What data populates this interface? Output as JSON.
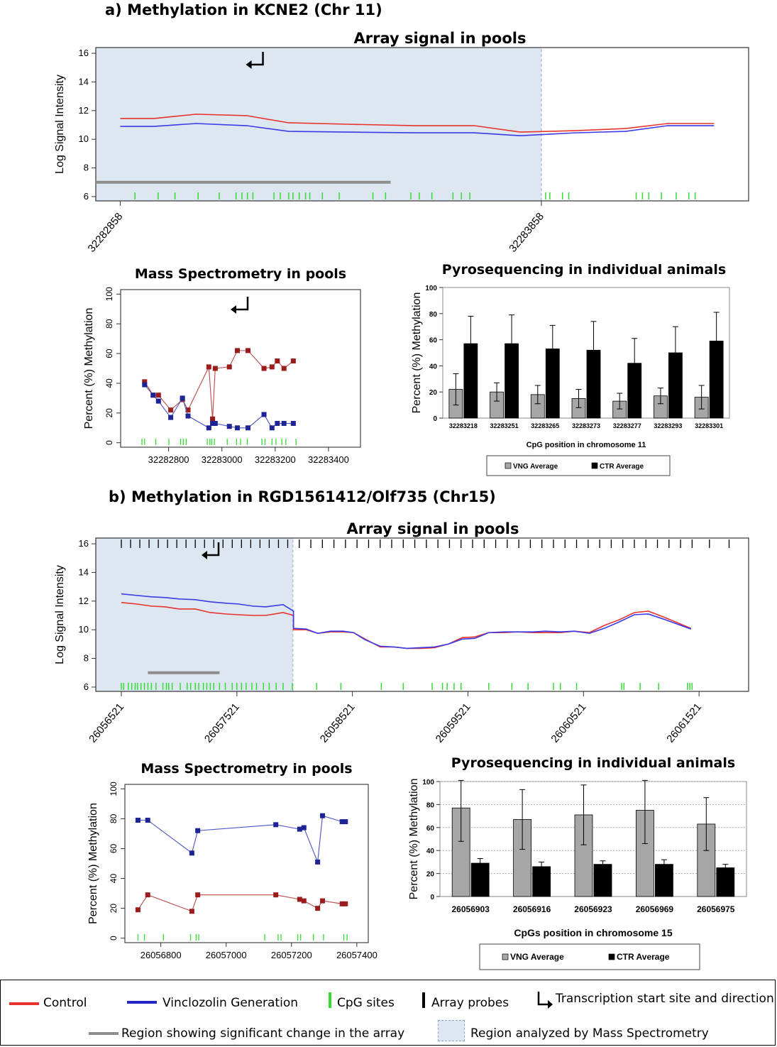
{
  "headings": {
    "part_a": "a) Methylation in KCNE2 (Chr 11)",
    "part_b": "b) Methylation in RGD1561412/Olf735 (Chr15)"
  },
  "colors": {
    "control": "#e8322b",
    "vinclozolin": "#3a3ae8",
    "cpg": "#33dd33",
    "shade": "#dde7f2",
    "sig_region": "#8c8c8c",
    "ms_control": "#9a1c1c",
    "ms_vinclozolin": "#1c2496",
    "pyro_vng": "#a6a6a6",
    "pyro_ctr": "#000000"
  },
  "legend": {
    "control": "Control",
    "vinclozolin": "Vinclozolin Generation",
    "cpg": "CpG sites",
    "probes": "Array probes",
    "tss": "Transcription start site and direction",
    "sig_region": "Region showing significant change in the array",
    "ms_region": "Region analyzed by Mass Spectrometry"
  },
  "chart_data": [
    {
      "id": "a_array",
      "type": "line",
      "title": "Array signal in pools",
      "ylabel": "Log Signal Intensity",
      "xlim": [
        32282800,
        32284350
      ],
      "ylim": [
        5.7,
        16.4
      ],
      "yticks": [
        6,
        8,
        10,
        12,
        14,
        16
      ],
      "xtick_labels": [
        "32282858",
        "32283858"
      ],
      "xticks": [
        32282858,
        32283858
      ],
      "ms_region": [
        32282800,
        32283858
      ],
      "significant_region": [
        32282800,
        32283500
      ],
      "tss": 32283180,
      "x": [
        32282858,
        32282938,
        32283038,
        32283158,
        32283258,
        32283398,
        32283558,
        32283698,
        32283808,
        32283938,
        32284058,
        32284158,
        32284268
      ],
      "series": [
        {
          "name": "Control",
          "values": [
            11.45,
            11.45,
            11.75,
            11.65,
            11.15,
            11.05,
            10.95,
            10.95,
            10.5,
            10.6,
            10.75,
            11.1,
            11.1
          ]
        },
        {
          "name": "Vinclozolin Generation",
          "values": [
            10.9,
            10.9,
            11.1,
            10.95,
            10.55,
            10.5,
            10.45,
            10.45,
            10.25,
            10.45,
            10.55,
            10.95,
            10.95
          ]
        }
      ],
      "cpg_sites": [
        32282893,
        32282948,
        32282988,
        32283043,
        32283093,
        32283133,
        32283147,
        32283160,
        32283173,
        32283223,
        32283238,
        32283258,
        32283268,
        32283283,
        32283298,
        32283308,
        32283338,
        32283378,
        32283458,
        32283488,
        32283548,
        32283568,
        32283598,
        32283648,
        32283668,
        32283688,
        32283868,
        32283878,
        32283908,
        32283923,
        32284083,
        32284098,
        32284113,
        32284143,
        32284178,
        32284208,
        32284223
      ]
    },
    {
      "id": "a_ms",
      "type": "line",
      "title": "Mass Spectrometry in pools",
      "ylabel": "Percent (%) Methylation",
      "xlim": [
        32282620,
        32283520
      ],
      "ylim": [
        -3,
        103
      ],
      "yticks": [
        0,
        20,
        40,
        60,
        80,
        100
      ],
      "xticks": [
        32282800,
        32283000,
        32283200,
        32283400
      ],
      "tss": 32283070,
      "series": [
        {
          "name": "Control",
          "points": [
            [
              32282710,
              41
            ],
            [
              32282742,
              32
            ],
            [
              32282762,
              32
            ],
            [
              32282808,
              22
            ],
            [
              32282852,
              29
            ],
            [
              32282873,
              22
            ],
            [
              32282951,
              51
            ],
            [
              32282965,
              16
            ],
            [
              32282975,
              50
            ],
            [
              32283028,
              51
            ],
            [
              32283058,
              62
            ],
            [
              32283098,
              62
            ],
            [
              32283158,
              50
            ],
            [
              32283188,
              51
            ],
            [
              32283208,
              55
            ],
            [
              32283233,
              50
            ],
            [
              32283268,
              55
            ]
          ]
        },
        {
          "name": "Vinclozolin Generation",
          "points": [
            [
              32282710,
              39
            ],
            [
              32282742,
              32
            ],
            [
              32282762,
              28
            ],
            [
              32282808,
              17
            ],
            [
              32282852,
              30
            ],
            [
              32282873,
              18
            ],
            [
              32282951,
              10
            ],
            [
              32282965,
              13
            ],
            [
              32282975,
              13
            ],
            [
              32283028,
              11
            ],
            [
              32283058,
              10
            ],
            [
              32283098,
              10
            ],
            [
              32283158,
              19
            ],
            [
              32283188,
              10
            ],
            [
              32283208,
              13
            ],
            [
              32283233,
              13
            ],
            [
              32283268,
              13
            ]
          ]
        }
      ],
      "cpg_sites": [
        32282700,
        32282710,
        32282752,
        32282801,
        32282845,
        32282855,
        32282866,
        32282945,
        32282955,
        32282962,
        32282972,
        32283020,
        32283055,
        32283070,
        32283095,
        32283150,
        32283162,
        32283188,
        32283203,
        32283225,
        32283240,
        32283278
      ]
    },
    {
      "id": "a_pyro",
      "type": "bar",
      "title": "Pyrosequencing in individual animals",
      "ylabel": "Percent (%) Methylation",
      "xlabel": "CpG position in chromosome 11",
      "ylim": [
        0,
        100
      ],
      "yticks": [
        0,
        20,
        40,
        60,
        80,
        100
      ],
      "categories": [
        "32283218",
        "32283251",
        "32283265",
        "32283273",
        "32283277",
        "32283293",
        "32283301"
      ],
      "series": [
        {
          "name": "VNG Average",
          "values": [
            22,
            20,
            18,
            15,
            13,
            17,
            16
          ],
          "errors": [
            12,
            7,
            7,
            7,
            6,
            6,
            9
          ]
        },
        {
          "name": "CTR Average",
          "values": [
            57,
            57,
            53,
            52,
            42,
            50,
            59
          ],
          "errors": [
            21,
            22,
            18,
            22,
            19,
            20,
            22
          ]
        }
      ]
    },
    {
      "id": "b_array",
      "type": "line",
      "title": "Array signal in pools",
      "ylabel": "Log Signal Intensity",
      "xlim": [
        26056300,
        26061950
      ],
      "ylim": [
        5.7,
        16.4
      ],
      "yticks": [
        6,
        8,
        10,
        12,
        14,
        16
      ],
      "ytick_labels": [
        "6",
        "8",
        "10",
        "12",
        "14",
        "16"
      ],
      "xtick_labels": [
        "26056521",
        "26057521",
        "26058521",
        "26059521",
        "26060521",
        "26061521"
      ],
      "xticks": [
        26056521,
        26057521,
        26058521,
        26059521,
        26060521,
        26061521
      ],
      "ms_region": [
        26056300,
        26058006
      ],
      "significant_region": [
        26056751,
        26057371
      ],
      "tss": 26057301,
      "x": [
        26056521,
        26056651,
        26056781,
        26056901,
        26057021,
        26057161,
        26057291,
        26057431,
        26057531,
        26057661,
        26057771,
        26057921,
        26058011,
        26058121,
        26058221,
        26058331,
        26058441,
        26058531,
        26058631,
        26058761,
        26058881,
        26058991,
        26059111,
        26059231,
        26059351,
        26059471,
        26059581,
        26059701,
        26059831,
        26059951,
        26060081,
        26060191,
        26060321,
        26060441,
        26060571,
        26060701,
        26060831,
        26060961,
        26061081,
        26061211,
        26061341,
        26061451
      ],
      "series": [
        {
          "name": "Control",
          "values": [
            11.9,
            11.8,
            11.65,
            11.6,
            11.45,
            11.45,
            11.2,
            11.1,
            11.05,
            11.0,
            11.0,
            11.2,
            11.0,
            10.0,
            10.0,
            9.75,
            9.85,
            9.85,
            9.8,
            9.35,
            8.8,
            8.8,
            8.7,
            8.7,
            8.75,
            9.0,
            9.45,
            9.5,
            9.8,
            9.8,
            9.85,
            9.8,
            9.8,
            9.8,
            9.9,
            9.8,
            10.3,
            10.7,
            11.2,
            11.3,
            10.9,
            10.1
          ],
          "x": [
            26056521,
            26056651,
            26056781,
            26056901,
            26057021,
            26057161,
            26057291,
            26057431,
            26057531,
            26057661,
            26057771,
            26057921,
            26058011,
            26058011,
            26058121,
            26058221,
            26058331,
            26058441,
            26058531,
            26058631,
            26058761,
            26058881,
            26058991,
            26059111,
            26059231,
            26059351,
            26059471,
            26059581,
            26059701,
            26059831,
            26059951,
            26060081,
            26060191,
            26060321,
            26060441,
            26060571,
            26060701,
            26060831,
            26060961,
            26061081,
            26061211,
            26061451
          ]
        },
        {
          "name": "Vinclozolin Generation",
          "values": [
            12.5,
            12.4,
            12.3,
            12.25,
            12.15,
            12.1,
            11.95,
            11.85,
            11.8,
            11.65,
            11.6,
            11.75,
            11.3,
            10.1,
            10.05,
            9.75,
            9.9,
            9.9,
            9.8,
            9.3,
            8.85,
            8.8,
            8.7,
            8.75,
            8.8,
            9.0,
            9.35,
            9.4,
            9.8,
            9.85,
            9.85,
            9.85,
            9.9,
            9.85,
            9.9,
            9.75,
            10.1,
            10.55,
            11.05,
            11.1,
            10.75,
            10.05
          ],
          "x": [
            26056521,
            26056651,
            26056781,
            26056901,
            26057021,
            26057161,
            26057291,
            26057431,
            26057531,
            26057661,
            26057771,
            26057921,
            26058011,
            26058011,
            26058121,
            26058221,
            26058331,
            26058441,
            26058531,
            26058631,
            26058761,
            26058881,
            26058991,
            26059111,
            26059231,
            26059351,
            26059471,
            26059581,
            26059701,
            26059831,
            26059951,
            26060081,
            26060191,
            26060321,
            26060441,
            26060571,
            26060701,
            26060831,
            26060961,
            26061081,
            26061211,
            26061451
          ]
        }
      ],
      "probes": [
        26056521,
        26056601,
        26056681,
        26056761,
        26056841,
        26056921,
        26057001,
        26057081,
        26057161,
        26057241,
        26057321,
        26057401,
        26057481,
        26057561,
        26057641,
        26057721,
        26057801,
        26057881,
        26057961,
        26058061,
        26058161,
        26058261,
        26058361,
        26058461,
        26058561,
        26058661,
        26058761,
        26058861,
        26058961,
        26059061,
        26059161,
        26059261,
        26059361,
        26059461,
        26059561,
        26059661,
        26059761,
        26059861,
        26059961,
        26060061,
        26060161,
        26060261,
        26060361,
        26060461,
        26060561,
        26060661,
        26060761,
        26060861,
        26060961,
        26061061,
        26061161,
        26061261,
        26061361,
        26061461,
        26061611,
        26061781
      ],
      "cpg_sites": [
        26056521,
        26056541,
        26056581,
        26056611,
        26056641,
        26056661,
        26056691,
        26056721,
        26056751,
        26056781,
        26056821,
        26056881,
        26056911,
        26056931,
        26056961,
        26057031,
        26057091,
        26057121,
        26057161,
        26057191,
        26057231,
        26057261,
        26057291,
        26057321,
        26057371,
        26057421,
        26057481,
        26057521,
        26057561,
        26057601,
        26057651,
        26057691,
        26057751,
        26057801,
        26057861,
        26057921,
        26058001,
        26058211,
        26058421,
        26058771,
        26058961,
        26059211,
        26059301,
        26059341,
        26059401,
        26059461,
        26059701,
        26059901,
        26060041,
        26060261,
        26060321,
        26060461,
        26060851,
        26060871,
        26061011,
        26061171,
        26061421,
        26061441,
        26061461
      ]
    },
    {
      "id": "b_ms",
      "type": "line",
      "title": "Mass Spectrometry in pools",
      "ylabel": "Percent (%) Methylation",
      "xlim": [
        26056690,
        26057435
      ],
      "ylim": [
        -3,
        103
      ],
      "yticks": [
        0,
        20,
        40,
        60,
        80,
        100
      ],
      "xticks": [
        26056800,
        26057000,
        26057200,
        26057400
      ],
      "series": [
        {
          "name": "Vinclozolin Generation",
          "points": [
            [
              26056730,
              79
            ],
            [
              26056760,
              79
            ],
            [
              26056895,
              57
            ],
            [
              26056913,
              72
            ],
            [
              26057152,
              76
            ],
            [
              26057225,
              73
            ],
            [
              26057238,
              74
            ],
            [
              26057280,
              51
            ],
            [
              26057295,
              82
            ],
            [
              26057355,
              78
            ],
            [
              26057365,
              78
            ]
          ]
        },
        {
          "name": "Control",
          "points": [
            [
              26056730,
              19
            ],
            [
              26056760,
              29
            ],
            [
              26056895,
              18
            ],
            [
              26056913,
              29
            ],
            [
              26057152,
              29
            ],
            [
              26057225,
              26
            ],
            [
              26057238,
              25
            ],
            [
              26057280,
              20
            ],
            [
              26057295,
              25
            ],
            [
              26057355,
              23
            ],
            [
              26057365,
              23
            ]
          ]
        }
      ],
      "cpg_sites": [
        26056730,
        26056750,
        26056808,
        26056891,
        26056908,
        26056916,
        26057118,
        26057159,
        26057168,
        26057219,
        26057228,
        26057267,
        26057298,
        26057360,
        26057370
      ]
    },
    {
      "id": "b_pyro",
      "type": "bar",
      "title": "Pyrosequencing in individual animals",
      "ylabel": "Percent (%) Methylation",
      "xlabel": "CpGs  position in chromosome  15",
      "ylim": [
        0,
        100
      ],
      "yticks": [
        0,
        20,
        40,
        60,
        80,
        100
      ],
      "categories": [
        "26056903",
        "26056916",
        "26056923",
        "26056969",
        "26056975"
      ],
      "series": [
        {
          "name": "VNG Average",
          "values": [
            77,
            67,
            71,
            75,
            63
          ],
          "errors": [
            29,
            26,
            26,
            29,
            23
          ]
        },
        {
          "name": "CTR Average",
          "values": [
            29,
            26,
            28,
            28,
            25
          ],
          "errors": [
            4,
            4,
            3,
            4,
            3
          ]
        }
      ]
    }
  ]
}
